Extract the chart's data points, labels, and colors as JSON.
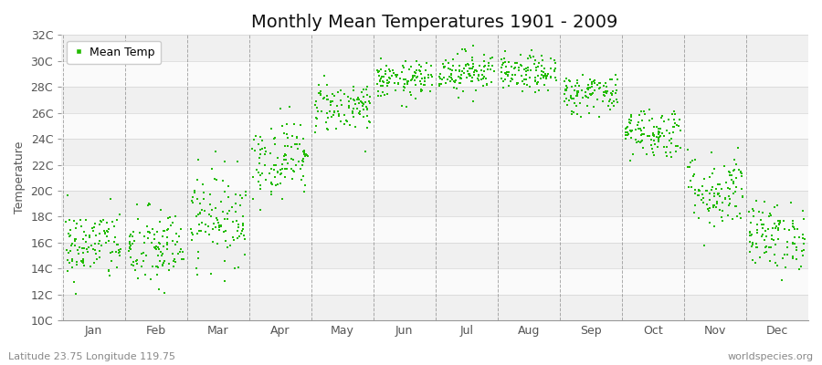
{
  "title": "Monthly Mean Temperatures 1901 - 2009",
  "ylabel": "Temperature",
  "subtitle_left": "Latitude 23.75 Longitude 119.75",
  "subtitle_right": "worldspecies.org",
  "ylim": [
    10,
    32
  ],
  "yticks": [
    10,
    12,
    14,
    16,
    18,
    20,
    22,
    24,
    26,
    28,
    30,
    32
  ],
  "ytick_labels": [
    "10C",
    "12C",
    "14C",
    "16C",
    "18C",
    "20C",
    "22C",
    "24C",
    "26C",
    "28C",
    "30C",
    "32C"
  ],
  "months": [
    "Jan",
    "Feb",
    "Mar",
    "Apr",
    "May",
    "Jun",
    "Jul",
    "Aug",
    "Sep",
    "Oct",
    "Nov",
    "Dec"
  ],
  "dot_color": "#22bb00",
  "dot_size": 3,
  "background_color": "#ffffff",
  "plot_bg_color": "#ffffff",
  "band_colors": [
    "#f0f0f0",
    "#fafafa"
  ],
  "grid_color": "#777777",
  "title_fontsize": 14,
  "label_fontsize": 9,
  "tick_fontsize": 9,
  "legend_marker_color": "#22bb00",
  "monthly_means": [
    15.8,
    15.5,
    18.0,
    22.5,
    26.5,
    28.5,
    29.2,
    29.0,
    27.5,
    24.5,
    20.0,
    16.5
  ],
  "monthly_stds": [
    1.4,
    1.6,
    1.8,
    1.5,
    1.0,
    0.7,
    0.8,
    0.7,
    0.8,
    1.0,
    1.5,
    1.3
  ],
  "n_years": 109,
  "seed": 42
}
